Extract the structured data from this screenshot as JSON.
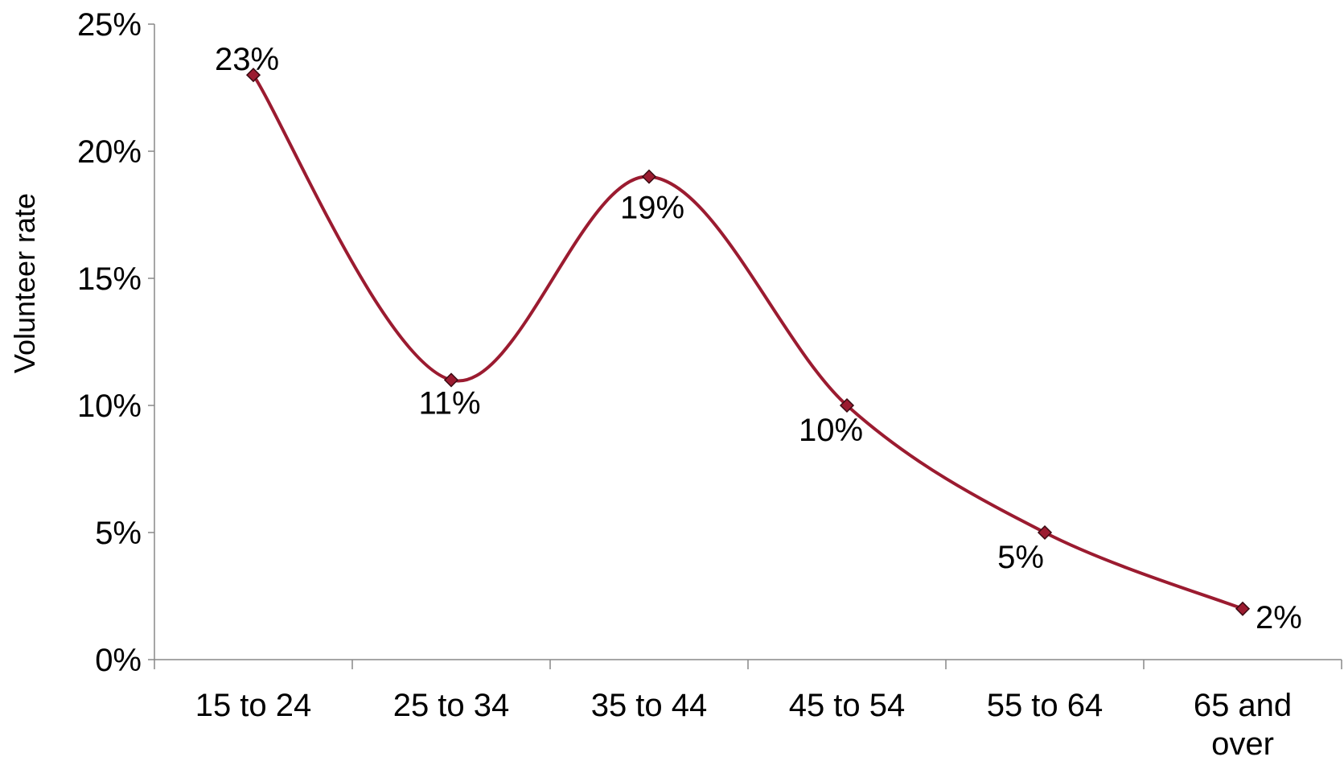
{
  "chart_data": {
    "type": "line",
    "categories": [
      "15 to 24",
      "25 to 34",
      "35 to 44",
      "45 to 54",
      "55 to 64",
      "65 and over"
    ],
    "series": [
      {
        "values": [
          23,
          11,
          19,
          10,
          5,
          2
        ]
      }
    ],
    "data_labels": [
      "23%",
      "11%",
      "19%",
      "10%",
      "5%",
      "2%"
    ],
    "title": "",
    "xlabel": "",
    "ylabel": "Volunteer rate",
    "ylim": [
      0,
      25
    ],
    "y_ticks": [
      0,
      5,
      10,
      15,
      20,
      25
    ],
    "y_tick_labels": [
      "0%",
      "5%",
      "10%",
      "15%",
      "20%",
      "25%"
    ],
    "grid": false,
    "legend": "none",
    "smooth": true,
    "line_color": "#9B1B30",
    "marker": "diamond",
    "marker_color": "#9B1B30"
  }
}
